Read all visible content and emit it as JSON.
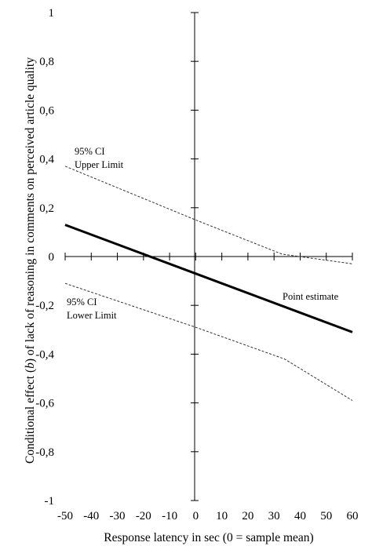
{
  "chart_data": {
    "type": "line",
    "xlabel": "Response latency in sec (0 = sample mean)",
    "ylabel_parts": [
      "Conditional effect (",
      "b",
      ") of lack of reasoning in comments on perceived article quality"
    ],
    "xlim": [
      -50,
      60
    ],
    "ylim": [
      -1,
      1
    ],
    "x_ticks": [
      -50,
      -40,
      -30,
      -20,
      -10,
      0,
      10,
      20,
      30,
      40,
      50,
      60
    ],
    "x_tick_labels": [
      "-50",
      "-40",
      "-30",
      "-20",
      "-10",
      "0",
      "10",
      "20",
      "30",
      "40",
      "50",
      "60"
    ],
    "y_ticks": [
      1,
      0.8,
      0.6,
      0.4,
      0.2,
      0,
      -0.2,
      -0.4,
      -0.6,
      -0.8,
      -1
    ],
    "y_tick_labels": [
      "1",
      "0,8",
      "0,6",
      "0,4",
      "0,2",
      "0",
      "-0,2",
      "-0,4",
      "-0,6",
      "-0,8",
      "-1"
    ],
    "series": [
      {
        "key": "point",
        "style": "solid-thick",
        "x": [
          -50,
          60
        ],
        "y": [
          0.13,
          -0.31
        ]
      },
      {
        "key": "upper",
        "style": "dashed",
        "x": [
          -50,
          0,
          33,
          60
        ],
        "y": [
          0.37,
          0.15,
          0.01,
          -0.03
        ]
      },
      {
        "key": "lower",
        "style": "dashed",
        "x": [
          -50,
          0,
          34,
          60
        ],
        "y": [
          -0.11,
          -0.29,
          -0.42,
          -0.59
        ]
      }
    ],
    "annotations": {
      "upper": [
        "95% CI",
        "Upper Limit"
      ],
      "lower": [
        "95% CI",
        "Lower Limit"
      ],
      "point": [
        "Point estimate"
      ]
    },
    "colors": {
      "line": "#000000",
      "dashed": "#333333"
    }
  }
}
